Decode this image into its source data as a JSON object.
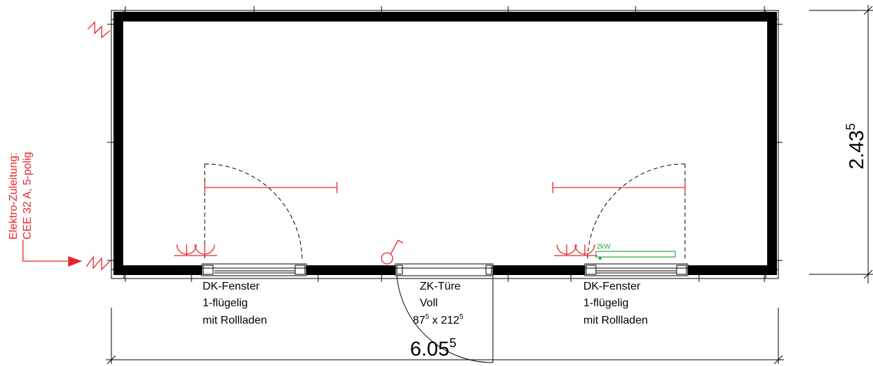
{
  "dimensions": {
    "width_main": "6.05",
    "width_sup": "5",
    "height_main": "2.43",
    "height_sup": "5"
  },
  "left_window": {
    "line1": "DK-Fenster",
    "line2": "1-flügelig",
    "line3": "mit Rollladen"
  },
  "door": {
    "line1": "ZK-Türe",
    "line2": "Voll",
    "size_w": "87",
    "size_w_sup": "5",
    "size_sep": " x 212",
    "size_h_sup": "5"
  },
  "right_window": {
    "line1": "DK-Fenster",
    "line2": "1-flügelig",
    "line3": "mit Rollladen"
  },
  "electric": {
    "line1": "Elektro-Zuleitung:",
    "line2": "CEE 32 A, 5-polig"
  },
  "heater_label": "2kW",
  "colors": {
    "wall": "#000000",
    "annotation": "#e8242c",
    "heater": "#2aa838"
  }
}
